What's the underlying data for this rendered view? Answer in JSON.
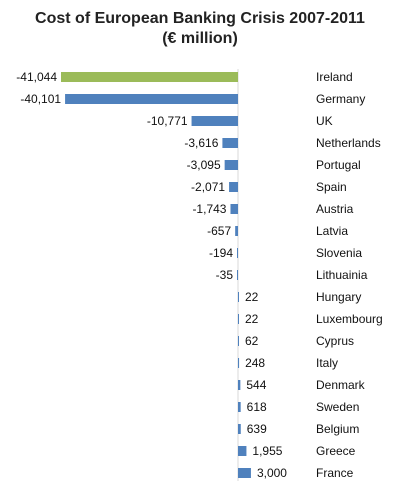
{
  "chart_data": {
    "type": "bar",
    "orientation": "horizontal",
    "title": "Cost of European Banking Crisis 2007-2011",
    "subtitle": "(€ million)",
    "categories": [
      "Ireland",
      "Germany",
      "UK",
      "Netherlands",
      "Portugal",
      "Spain",
      "Austria",
      "Latvia",
      "Slovenia",
      "Lithuainia",
      "Hungary",
      "Luxembourg",
      "Cyprus",
      "Italy",
      "Denmark",
      "Sweden",
      "Belgium",
      "Greece",
      "France"
    ],
    "values": [
      -41044,
      -40101,
      -10771,
      -3616,
      -3095,
      -2071,
      -1743,
      -657,
      -194,
      -35,
      22,
      22,
      62,
      248,
      544,
      618,
      639,
      1955,
      3000
    ],
    "value_labels": [
      "-41,044",
      "-40,101",
      "-10,771",
      "-3,616",
      "-3,095",
      "-2,071",
      "-1,743",
      "-657",
      "-194",
      "-35",
      "22",
      "22",
      "62",
      "248",
      "544",
      "618",
      "639",
      "1,955",
      "3,000"
    ],
    "xlim": [
      -41044,
      3000
    ],
    "grid": false,
    "legend": "none",
    "colors": {
      "default": "#4f81bd",
      "highlight": "#9bbb59"
    },
    "highlight_index": 0
  }
}
